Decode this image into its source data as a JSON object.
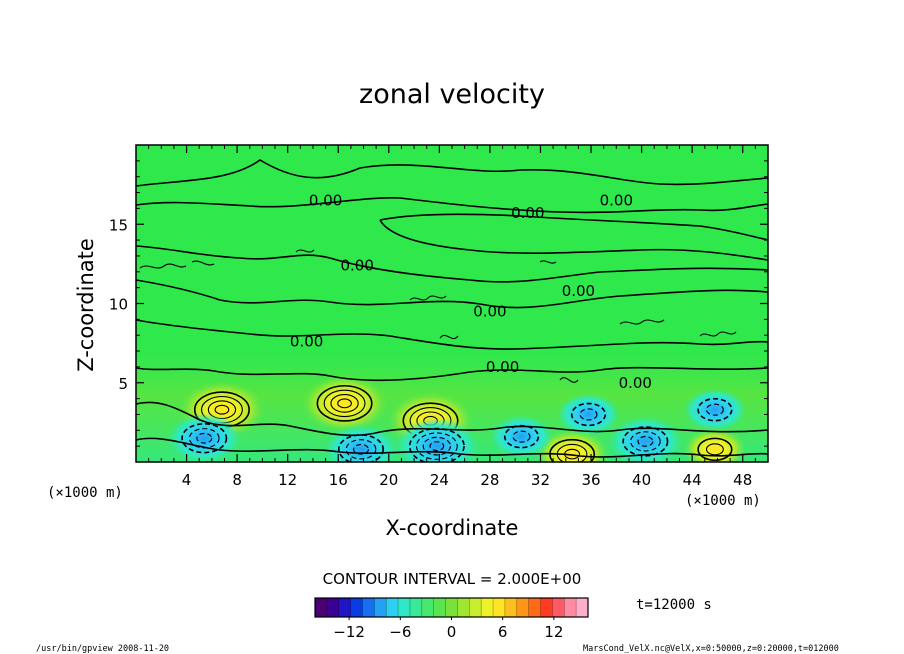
{
  "chart_data": {
    "type": "heatmap",
    "title": "zonal velocity",
    "xlabel": "X-coordinate",
    "ylabel": "Z-coordinate",
    "x_unit_left": "(×1000 m)",
    "x_unit_right": "(×1000 m)",
    "xlim": [
      0,
      50
    ],
    "ylim": [
      0,
      20
    ],
    "x_ticks": [
      4,
      8,
      12,
      16,
      20,
      24,
      28,
      32,
      36,
      40,
      44,
      48
    ],
    "y_ticks": [
      5,
      10,
      15
    ],
    "contour_interval_label": "CONTOUR INTERVAL = 2.000E+00",
    "contour_labels": [
      {
        "text": "0.00",
        "x": 15,
        "z": 16.5
      },
      {
        "text": "0.00",
        "x": 31,
        "z": 15.7
      },
      {
        "text": "0.00",
        "x": 38,
        "z": 16.5
      },
      {
        "text": "0.00",
        "x": 17.5,
        "z": 12.4
      },
      {
        "text": "0.00",
        "x": 35,
        "z": 10.8
      },
      {
        "text": "0.00",
        "x": 28,
        "z": 9.5
      },
      {
        "text": "0.00",
        "x": 13.5,
        "z": 7.6
      },
      {
        "text": "0.00",
        "x": 29,
        "z": 6.0
      },
      {
        "text": "0.00",
        "x": 39.5,
        "z": 5.0
      }
    ],
    "extrema": [
      {
        "x": 6.8,
        "z": 3.3,
        "value": 10,
        "sign": "positive"
      },
      {
        "x": 16.5,
        "z": 3.7,
        "value": 10,
        "sign": "positive"
      },
      {
        "x": 23.3,
        "z": 2.6,
        "value": 10,
        "sign": "positive"
      },
      {
        "x": 34.5,
        "z": 0.5,
        "value": 8,
        "sign": "positive"
      },
      {
        "x": 45.8,
        "z": 0.8,
        "value": 6,
        "sign": "positive"
      },
      {
        "x": 5.4,
        "z": 1.5,
        "value": -8,
        "sign": "negative"
      },
      {
        "x": 17.8,
        "z": 0.8,
        "value": -8,
        "sign": "negative"
      },
      {
        "x": 23.8,
        "z": 1.0,
        "value": -10,
        "sign": "negative"
      },
      {
        "x": 30.5,
        "z": 1.6,
        "value": -6,
        "sign": "negative"
      },
      {
        "x": 35.8,
        "z": 3.0,
        "value": -6,
        "sign": "negative"
      },
      {
        "x": 40.3,
        "z": 1.3,
        "value": -8,
        "sign": "negative"
      },
      {
        "x": 45.8,
        "z": 3.3,
        "value": -6,
        "sign": "negative"
      }
    ],
    "colorbar": {
      "min": -16,
      "max": 16,
      "ticks": [
        -12,
        -6,
        0,
        6,
        12
      ],
      "tick_labels": [
        "−12",
        "−6",
        "0",
        "6",
        "12"
      ],
      "colors": [
        "#4a0073",
        "#3a0096",
        "#1f14c8",
        "#0a3ce6",
        "#1470f0",
        "#22a0f5",
        "#2ed0f2",
        "#30e8c8",
        "#3ae89a",
        "#46e86e",
        "#5ae450",
        "#78e23a",
        "#9ee632",
        "#c8ec2e",
        "#eef22a",
        "#ffe424",
        "#ffbe1e",
        "#ff961a",
        "#ff6a16",
        "#ff3c20",
        "#ff5a64",
        "#ff8ca0",
        "#ffb0c8"
      ]
    },
    "field_background_color": "#2ee84c",
    "time_label": "t=12000 s"
  },
  "footer": {
    "left": "/usr/bin/gpview   2008-11-20",
    "right": "MarsCond_VelX.nc@VelX,x=0:50000,z=0:20000,t=012000"
  }
}
